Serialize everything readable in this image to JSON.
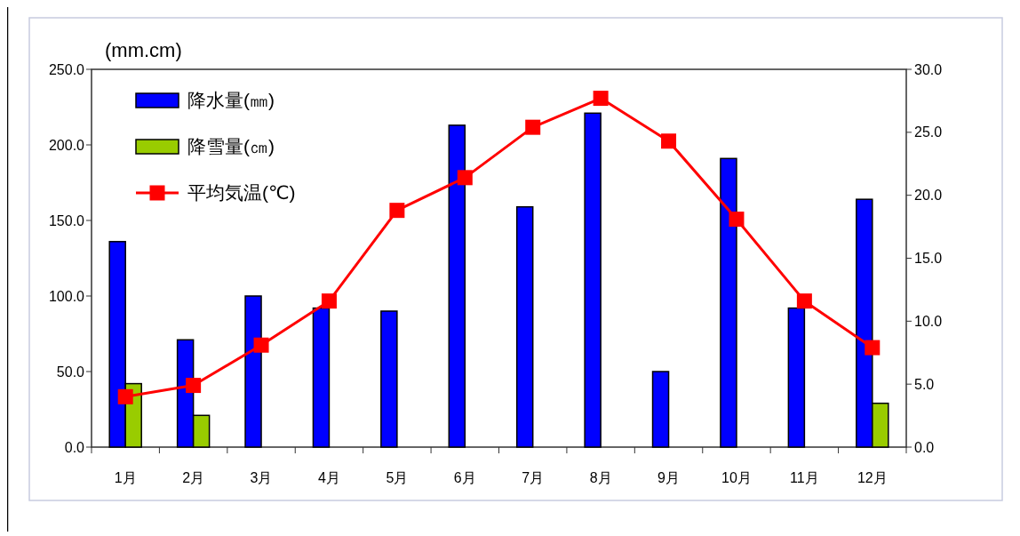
{
  "chart_data": {
    "type": "bar",
    "ylabel": "(mm.cm)",
    "categories": [
      "1月",
      "2月",
      "3月",
      "4月",
      "5月",
      "6月",
      "7月",
      "8月",
      "9月",
      "10月",
      "11月",
      "12月"
    ],
    "series": [
      {
        "name": "降水量(㎜)",
        "color": "#0000ff",
        "values": [
          136,
          71,
          100,
          92,
          90,
          213,
          159,
          221,
          50,
          191,
          92,
          164
        ]
      },
      {
        "name": "降雪量(㎝)",
        "color": "#99cc00",
        "values": [
          42,
          21,
          null,
          null,
          null,
          null,
          null,
          null,
          null,
          null,
          null,
          29
        ]
      },
      {
        "name": "平均気温(℃)",
        "type": "line",
        "axis": "y2",
        "color": "#ff0000",
        "marker": "square",
        "values": [
          4.0,
          4.9,
          8.1,
          11.6,
          18.8,
          21.4,
          25.4,
          27.7,
          24.3,
          18.1,
          11.6,
          7.9
        ]
      }
    ],
    "ylim": [
      0,
      250
    ],
    "yticks": [
      {
        "value": 0,
        "label": "0.0"
      },
      {
        "value": 50,
        "label": "50.0"
      },
      {
        "value": 100,
        "label": "100.0"
      },
      {
        "value": 150,
        "label": "150.0"
      },
      {
        "value": 200,
        "label": "200.0"
      },
      {
        "value": 250,
        "label": "250.0"
      }
    ],
    "y2lim": [
      0,
      30
    ],
    "y2ticks": [
      {
        "value": 0,
        "label": "0.0"
      },
      {
        "value": 5,
        "label": "5.0"
      },
      {
        "value": 10,
        "label": "10.0"
      },
      {
        "value": 15,
        "label": "15.0"
      },
      {
        "value": 20,
        "label": "20.0"
      },
      {
        "value": 25,
        "label": "25.0"
      },
      {
        "value": 30,
        "label": "30.0"
      }
    ],
    "grid": false,
    "legend": "top left"
  }
}
